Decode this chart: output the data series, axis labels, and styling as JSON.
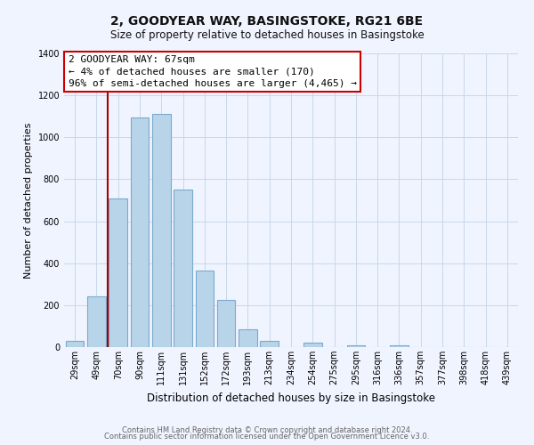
{
  "title": "2, GOODYEAR WAY, BASINGSTOKE, RG21 6BE",
  "subtitle": "Size of property relative to detached houses in Basingstoke",
  "xlabel": "Distribution of detached houses by size in Basingstoke",
  "ylabel": "Number of detached properties",
  "bar_labels": [
    "29sqm",
    "49sqm",
    "70sqm",
    "90sqm",
    "111sqm",
    "131sqm",
    "152sqm",
    "172sqm",
    "193sqm",
    "213sqm",
    "234sqm",
    "254sqm",
    "275sqm",
    "295sqm",
    "316sqm",
    "336sqm",
    "357sqm",
    "377sqm",
    "398sqm",
    "418sqm",
    "439sqm"
  ],
  "bar_values": [
    30,
    240,
    710,
    1095,
    1110,
    750,
    365,
    225,
    85,
    30,
    0,
    20,
    0,
    10,
    0,
    10,
    0,
    0,
    0,
    0,
    0
  ],
  "bar_color": "#b8d4e8",
  "bar_edge_color": "#7aaad0",
  "vline_color": "#aa0000",
  "annotation_title": "2 GOODYEAR WAY: 67sqm",
  "annotation_line1": "← 4% of detached houses are smaller (170)",
  "annotation_line2": "96% of semi-detached houses are larger (4,465) →",
  "annotation_box_color": "#ffffff",
  "annotation_box_edge_color": "#cc0000",
  "ylim": [
    0,
    1400
  ],
  "yticks": [
    0,
    200,
    400,
    600,
    800,
    1000,
    1200,
    1400
  ],
  "footer_line1": "Contains HM Land Registry data © Crown copyright and database right 2024.",
  "footer_line2": "Contains public sector information licensed under the Open Government Licence v3.0.",
  "bg_color": "#f0f4ff",
  "grid_color": "#c8d8e8",
  "title_fontsize": 10,
  "subtitle_fontsize": 8.5,
  "ylabel_fontsize": 8,
  "xlabel_fontsize": 8.5,
  "tick_fontsize": 7,
  "footer_fontsize": 6,
  "ann_fontsize": 8
}
